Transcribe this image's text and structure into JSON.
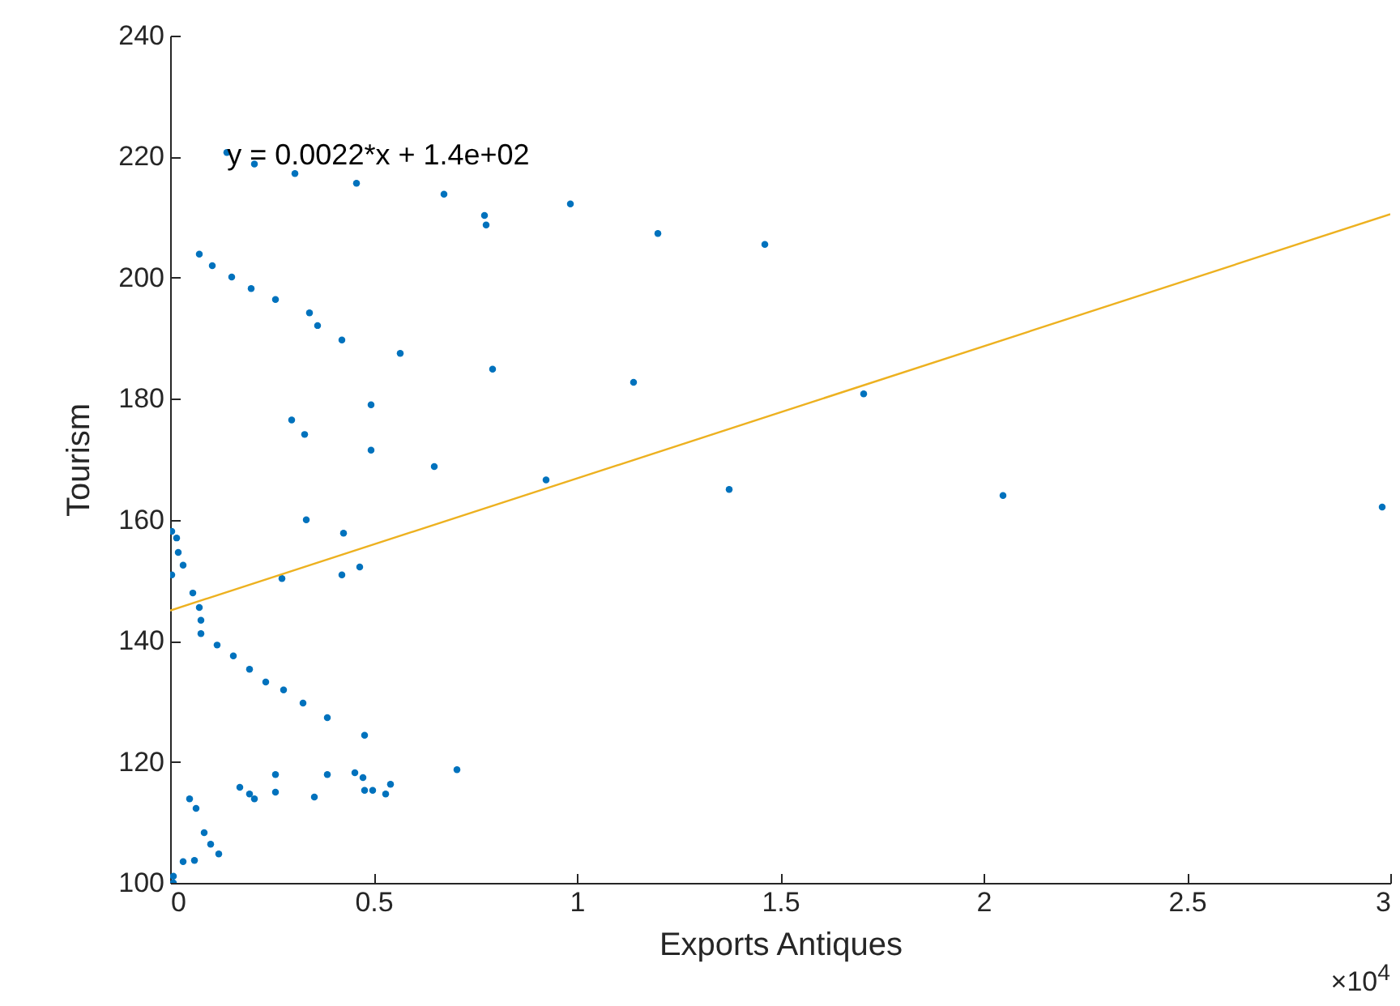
{
  "chart_data": {
    "type": "scatter",
    "xlabel": "Exports Antiques",
    "ylabel": "Tourism",
    "xlim": [
      0,
      3
    ],
    "ylim": [
      100,
      240
    ],
    "xticks": [
      0,
      0.5,
      1,
      1.5,
      2,
      2.5,
      3
    ],
    "yticks": [
      100,
      120,
      140,
      160,
      180,
      200,
      220,
      240
    ],
    "grid": false,
    "line_style": "solid",
    "annotations": [
      {
        "text": "y = 0.0022*x + 1.4e+02",
        "x": 0.14,
        "y": 220
      },
      "×10$^{4}$"
    ],
    "series": [
      {
        "color": "#0072bd",
        "marker": "circle",
        "x": [
          0.1394,
          0.2072,
          0.3068,
          0.4582,
          0.6733,
          0.7729,
          0.7769,
          0.9841,
          1.1992,
          1.4622,
          0.0717,
          0.1036,
          0.1514,
          0.1992,
          0.259,
          0.3426,
          0.3625,
          0.4223,
          0.5657,
          0.7928,
          1.1394,
          1.7052,
          0.2988,
          0.3307,
          0.494,
          0.494,
          0.6494,
          0.9243,
          1.3745,
          2.0478,
          2.9801,
          0.3347,
          0.4263,
          0.2749,
          0.4223,
          0.4661,
          0.004,
          0.0159,
          0.0199,
          0.0319,
          0.004,
          0.0558,
          0.0717,
          0.0757,
          0.0757,
          0.1155,
          0.1554,
          0.1952,
          0.2351,
          0.2789,
          0.3267,
          0.3865,
          0.4781,
          0.0478,
          0.0637,
          0.0837,
          0.0996,
          0.1195,
          0.0319,
          0.0598,
          0.008,
          0.008,
          0.1713,
          0.1952,
          0.2072,
          0.259,
          0.259,
          0.3546,
          0.3865,
          0.4542,
          0.4741,
          0.4781,
          0.498,
          0.5299,
          0.5418,
          0.7052
        ],
        "values": [
          220.7,
          218.8,
          217.2,
          215.6,
          213.8,
          210.3,
          208.7,
          212.2,
          207.3,
          205.5,
          203.9,
          202,
          200.1,
          198.2,
          196.4,
          194.2,
          192.1,
          189.7,
          187.5,
          184.9,
          182.7,
          180.8,
          176.5,
          174.1,
          179,
          171.5,
          168.8,
          166.6,
          165,
          164,
          162.1,
          160,
          157.8,
          150.3,
          150.9,
          152.2,
          158.1,
          157,
          154.6,
          152.5,
          150.9,
          147.9,
          145.5,
          143.4,
          141.2,
          139.3,
          137.5,
          135.3,
          133.2,
          131.9,
          129.7,
          127.3,
          124.4,
          113.9,
          112.3,
          108.3,
          106.4,
          104.8,
          103.5,
          103.7,
          101.1,
          100,
          115.8,
          114.7,
          113.9,
          115,
          117.9,
          114.2,
          117.9,
          118.2,
          117.4,
          115.3,
          115.3,
          114.7,
          116.3,
          118.7
        ]
      },
      {
        "type": "line",
        "color": "#edb120",
        "marker": "none",
        "x": [
          0,
          3
        ],
        "values": [
          145,
          210.5
        ]
      }
    ]
  }
}
